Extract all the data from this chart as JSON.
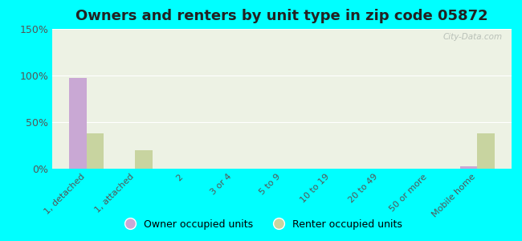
{
  "title": "Owners and renters by unit type in zip code 05872",
  "categories": [
    "1, detached",
    "1, attached",
    "2",
    "3 or 4",
    "5 to 9",
    "10 to 19",
    "20 to 49",
    "50 or more",
    "Mobile home"
  ],
  "owner_values": [
    97,
    0,
    0,
    0,
    0,
    0,
    0,
    0,
    3
  ],
  "renter_values": [
    38,
    20,
    0,
    0,
    0,
    0,
    0,
    0,
    38
  ],
  "owner_color": "#c9a8d4",
  "renter_color": "#c8d4a0",
  "ylim": [
    0,
    150
  ],
  "yticks": [
    0,
    50,
    100,
    150
  ],
  "ytick_labels": [
    "0%",
    "50%",
    "100%",
    "150%"
  ],
  "background_color": "#00ffff",
  "plot_bg_color": "#edf2e4",
  "watermark": "City-Data.com",
  "legend_owner": "Owner occupied units",
  "legend_renter": "Renter occupied units",
  "title_fontsize": 13,
  "bar_width": 0.35
}
